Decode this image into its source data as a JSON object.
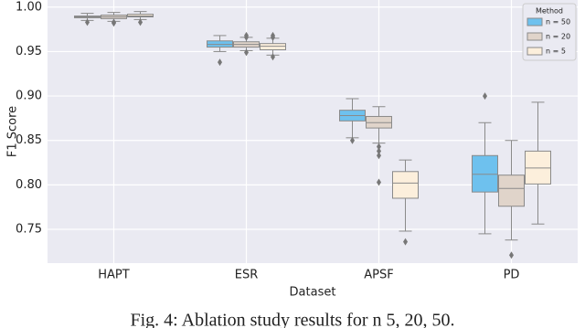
{
  "chart_data": {
    "type": "box",
    "ylabel": "F1 Score",
    "xlabel": "Dataset",
    "caption": "Fig. 4: Ablation study results for n 5, 20, 50.",
    "legend_title": "Method",
    "legend": "upper right",
    "grid": true,
    "categories": [
      "HAPT",
      "ESR",
      "APSF",
      "PD"
    ],
    "ylim": [
      0.712,
      1.008
    ],
    "yticks": [
      {
        "value": 0.75,
        "label": "0.75"
      },
      {
        "value": 0.8,
        "label": "0.80"
      },
      {
        "value": 0.85,
        "label": "0.85"
      },
      {
        "value": 0.9,
        "label": "0.90"
      },
      {
        "value": 0.95,
        "label": "0.95"
      },
      {
        "value": 1.0,
        "label": "1.00"
      }
    ],
    "series": [
      {
        "name": "n = 50",
        "color": "#6ec1ee",
        "boxes": [
          {
            "min": 0.985,
            "q1": 0.988,
            "median": 0.989,
            "q3": 0.99,
            "max": 0.993,
            "outliers": [
              0.983
            ]
          },
          {
            "min": 0.95,
            "q1": 0.955,
            "median": 0.958,
            "q3": 0.962,
            "max": 0.968,
            "outliers": [
              0.938
            ]
          },
          {
            "min": 0.853,
            "q1": 0.872,
            "median": 0.878,
            "q3": 0.884,
            "max": 0.897,
            "outliers": [
              0.85
            ]
          },
          {
            "min": 0.745,
            "q1": 0.792,
            "median": 0.812,
            "q3": 0.833,
            "max": 0.87,
            "outliers": [
              0.9
            ]
          }
        ]
      },
      {
        "name": "n = 20",
        "color": "#e0d4ca",
        "boxes": [
          {
            "min": 0.984,
            "q1": 0.987,
            "median": 0.989,
            "q3": 0.991,
            "max": 0.994,
            "outliers": [
              0.982,
              0.983
            ]
          },
          {
            "min": 0.951,
            "q1": 0.955,
            "median": 0.958,
            "q3": 0.961,
            "max": 0.966,
            "outliers": [
              0.949,
              0.968,
              0.966
            ]
          },
          {
            "min": 0.847,
            "q1": 0.864,
            "median": 0.87,
            "q3": 0.877,
            "max": 0.888,
            "outliers": [
              0.843,
              0.838,
              0.833,
              0.803
            ]
          },
          {
            "min": 0.738,
            "q1": 0.776,
            "median": 0.796,
            "q3": 0.811,
            "max": 0.85,
            "outliers": [
              0.721
            ]
          }
        ]
      },
      {
        "name": "n = 5",
        "color": "#fcefdc",
        "boxes": [
          {
            "min": 0.986,
            "q1": 0.989,
            "median": 0.99,
            "q3": 0.992,
            "max": 0.995,
            "outliers": [
              0.983
            ]
          },
          {
            "min": 0.946,
            "q1": 0.952,
            "median": 0.956,
            "q3": 0.959,
            "max": 0.965,
            "outliers": [
              0.944,
              0.968,
              0.966
            ]
          },
          {
            "min": 0.748,
            "q1": 0.785,
            "median": 0.802,
            "q3": 0.815,
            "max": 0.828,
            "outliers": [
              0.736
            ]
          },
          {
            "min": 0.756,
            "q1": 0.801,
            "median": 0.819,
            "q3": 0.838,
            "max": 0.893,
            "outliers": []
          }
        ]
      }
    ]
  }
}
